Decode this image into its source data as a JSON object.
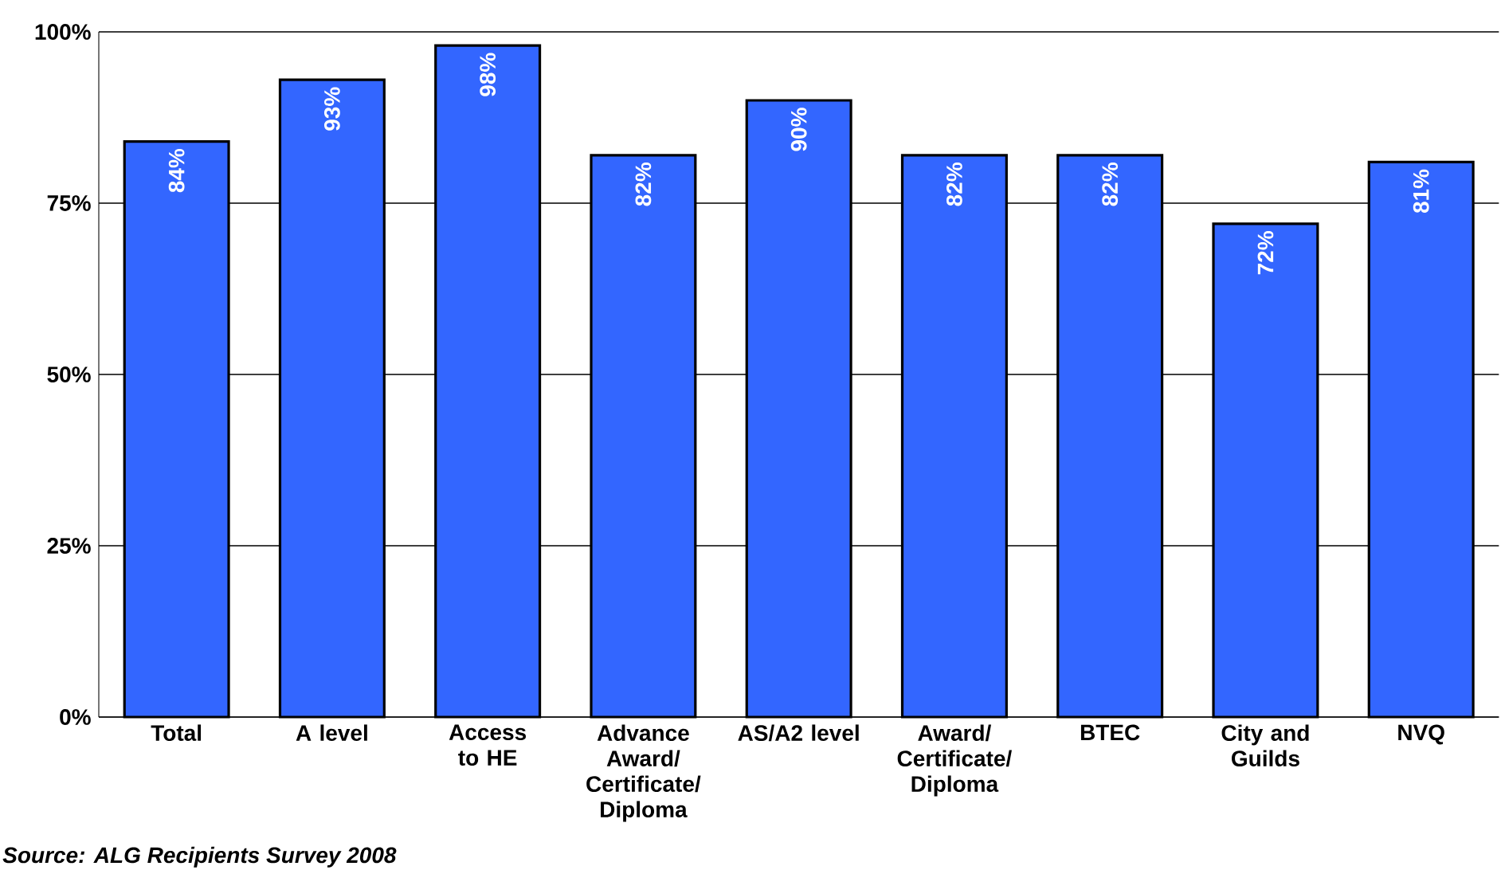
{
  "chart_data": {
    "type": "bar",
    "categories": [
      "Total",
      "A level",
      "Access to HE",
      "Advance Award/ Certificate/ Diploma",
      "AS/A2 level",
      "Award/ Certificate/ Diploma",
      "BTEC",
      "City and Guilds",
      "NVQ"
    ],
    "values": [
      84,
      93,
      98,
      82,
      90,
      82,
      82,
      72,
      81
    ],
    "value_labels": [
      "84%",
      "93%",
      "98%",
      "82%",
      "90%",
      "82%",
      "82%",
      "72%",
      "81%"
    ],
    "color": "#3366ff",
    "ylim": [
      0,
      100
    ],
    "yticks": [
      {
        "value": 0,
        "label": "0%"
      },
      {
        "value": 25,
        "label": "25%"
      },
      {
        "value": 50,
        "label": "50%"
      },
      {
        "value": 75,
        "label": "75%"
      },
      {
        "value": 100,
        "label": "100%"
      }
    ],
    "grid": "y",
    "annotations": [
      "*Source: ALG Recipients Survey 2008*"
    ]
  }
}
